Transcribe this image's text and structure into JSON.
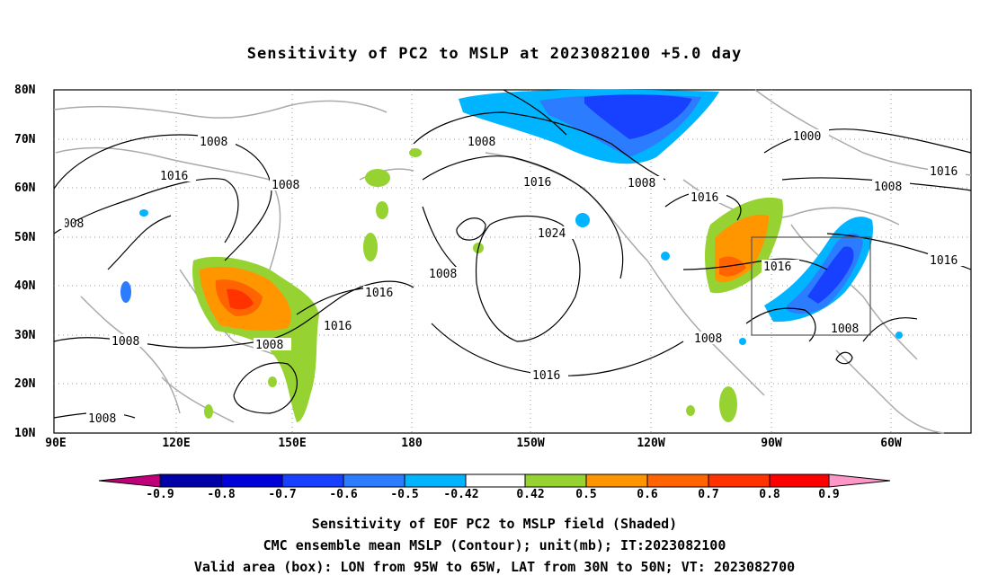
{
  "title": "Sensitivity of PC2 to MSLP at 2023082100 +5.0 day",
  "latitudes": [
    "80N",
    "70N",
    "60N",
    "50N",
    "40N",
    "30N",
    "20N",
    "10N"
  ],
  "longitudes": [
    "90E",
    "120E",
    "150E",
    "180",
    "150W",
    "120W",
    "90W",
    "60W"
  ],
  "contour_labels": [
    "1008",
    "1016",
    "1024",
    "1000"
  ],
  "colorbar": {
    "labels": [
      "-0.9",
      "-0.8",
      "-0.7",
      "-0.6",
      "-0.5",
      "-0.42",
      "0.42",
      "0.5",
      "0.6",
      "0.7",
      "0.8",
      "0.9"
    ],
    "colors": [
      "#c0007a",
      "#0000a8",
      "#0000d8",
      "#1840ff",
      "#2c7cff",
      "#00b4ff",
      "#ffffff",
      "#96d232",
      "#ff9600",
      "#ff6400",
      "#ff3200",
      "#ff0000",
      "#ff96c8"
    ]
  },
  "caption_lines": [
    "Sensitivity of EOF PC2 to MSLP field (Shaded)",
    "CMC ensemble mean MSLP (Contour); unit(mb); IT:2023082100",
    "Valid area (box): LON from 95W to 65W, LAT from 30N to 50N; VT: 2023082700"
  ]
}
